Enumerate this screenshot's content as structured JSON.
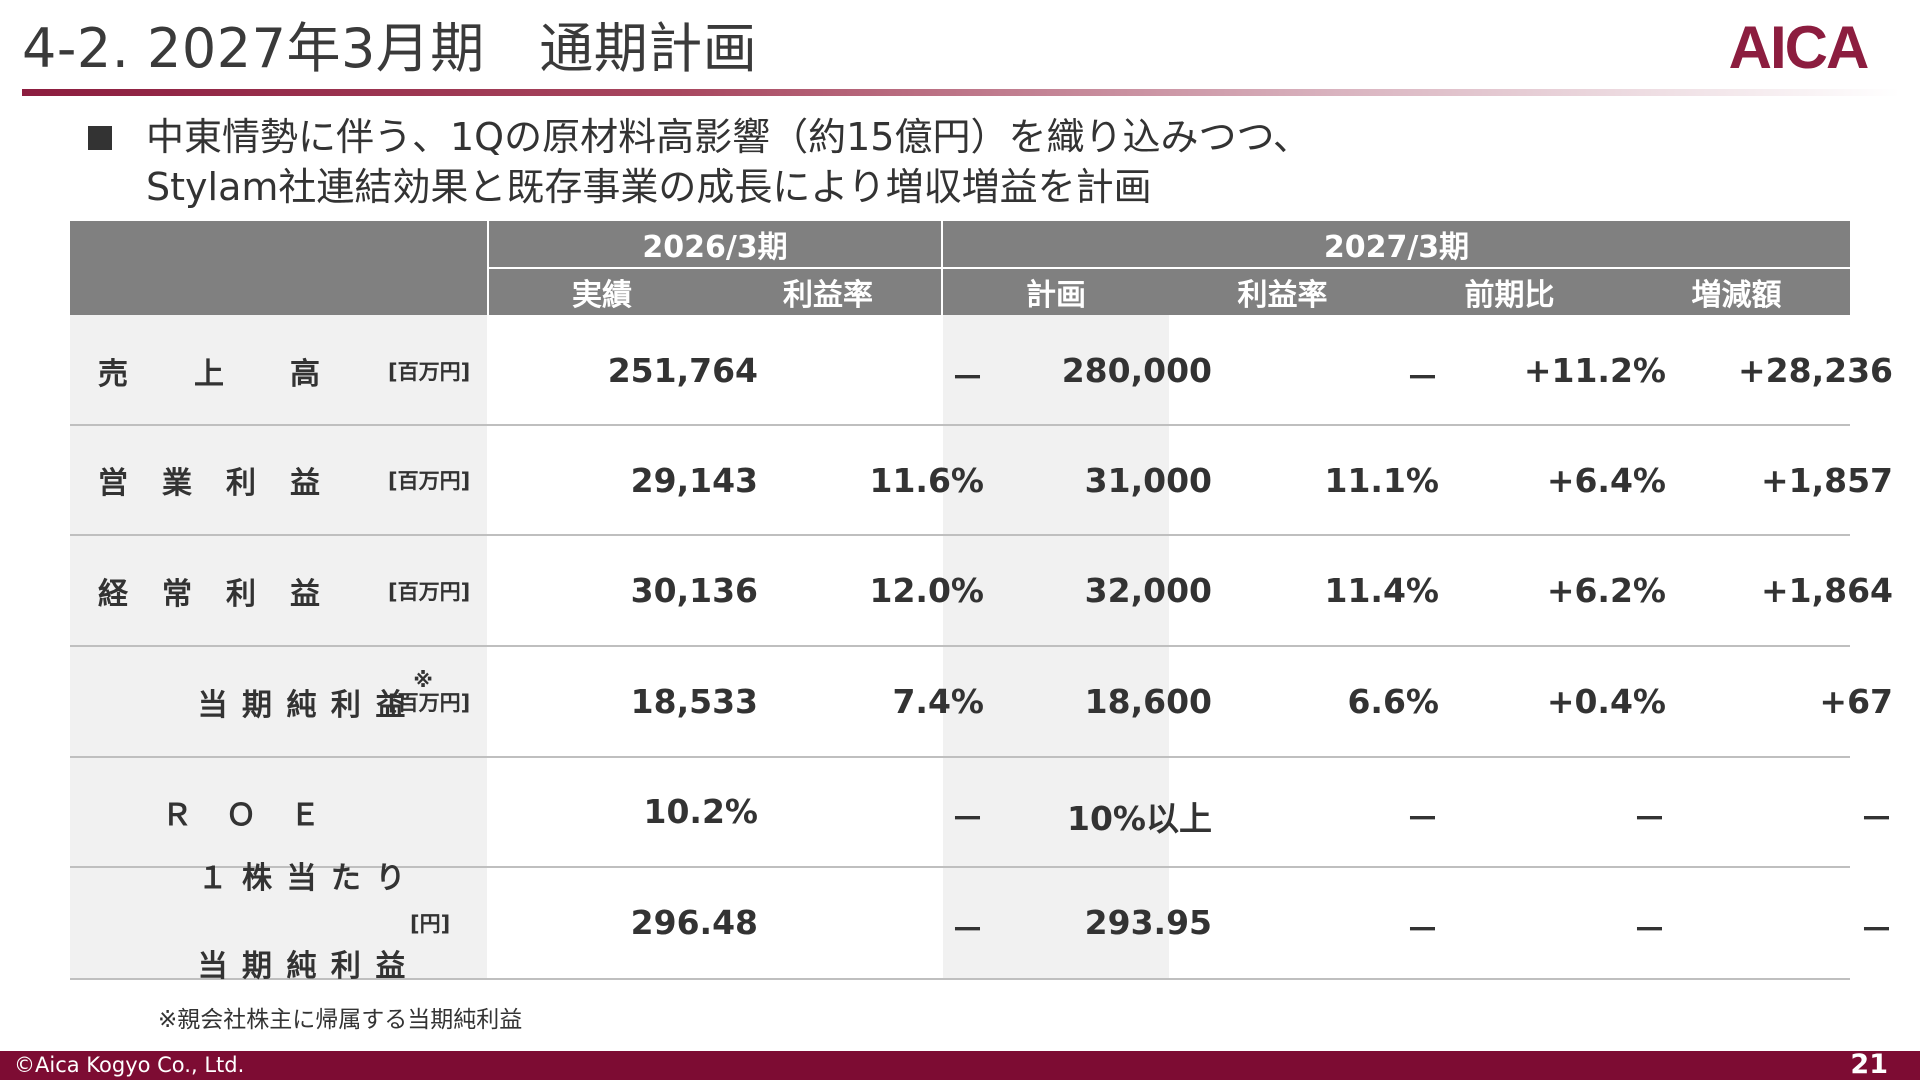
{
  "header": {
    "title": "4-2. 2027年3月期　通期計画",
    "logo_text": "AICA",
    "brand_color": "#8c1d3f"
  },
  "lead": {
    "line1": "中東情勢に伴う、1Qの原材料高影響（約15億円）を織り込みつつ、",
    "line2": "Stylam社連結効果と既存事業の成長により増収増益を計画"
  },
  "table": {
    "period_prev": "2026/3期",
    "period_plan": "2027/3期",
    "columns": [
      "実績",
      "利益率",
      "計画",
      "利益率",
      "前期比",
      "増減額"
    ],
    "rows": [
      {
        "label": "売　　上　　高",
        "note": "",
        "unit": "[百万円]",
        "values": [
          "251,764",
          "－",
          "280,000",
          "－",
          "+11.2%",
          "+28,236"
        ]
      },
      {
        "label": "営　業　利　益",
        "note": "",
        "unit": "[百万円]",
        "values": [
          "29,143",
          "11.6%",
          "31,000",
          "11.1%",
          "+6.4%",
          "+1,857"
        ]
      },
      {
        "label": "経　常　利　益",
        "note": "",
        "unit": "[百万円]",
        "values": [
          "30,136",
          "12.0%",
          "32,000",
          "11.4%",
          "+6.2%",
          "+1,864"
        ]
      },
      {
        "label": "当 期 純 利 益",
        "note": "※",
        "unit": "[百万円]",
        "values": [
          "18,533",
          "7.4%",
          "18,600",
          "6.6%",
          "+0.4%",
          "+67"
        ]
      },
      {
        "label": "　Ｒ　Ｏ　Ｅ",
        "note": "",
        "unit": "",
        "values": [
          "10.2%",
          "－",
          "10%以上",
          "－",
          "－",
          "－"
        ]
      },
      {
        "label": "１ 株 当 た り",
        "label2": "当 期 純 利 益",
        "note": "",
        "unit": "[円]",
        "values": [
          "296.48",
          "－",
          "293.95",
          "－",
          "－",
          "－"
        ]
      }
    ]
  },
  "footnote": "※親会社株主に帰属する当期純利益",
  "footer": {
    "copyright": "©Aica Kogyo Co., Ltd.",
    "page": "21",
    "color": "#7d0c33"
  }
}
